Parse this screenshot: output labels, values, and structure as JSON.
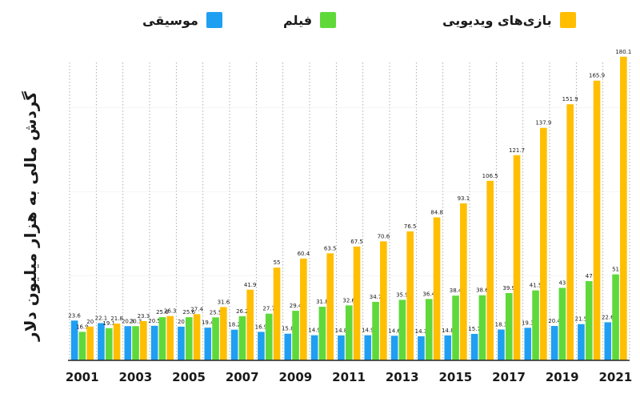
{
  "chart_data": {
    "type": "bar",
    "title": "",
    "ylabel": "گردش مالی به هزار میلیون دلار",
    "xlabel": "",
    "ylim": [
      0,
      190
    ],
    "grid": "vertical dotted lines between years",
    "legend_position": "top",
    "categories": [
      "2001",
      "2002",
      "2003",
      "2004",
      "2005",
      "2006",
      "2007",
      "2008",
      "2009",
      "2010",
      "2011",
      "2012",
      "2013",
      "2014",
      "2015",
      "2016",
      "2017",
      "2018",
      "2019",
      "2020",
      "2021"
    ],
    "x_tick_labels": [
      "2001",
      "2003",
      "2005",
      "2007",
      "2009",
      "2011",
      "2013",
      "2015",
      "2017",
      "2019",
      "2021"
    ],
    "series": [
      {
        "name": "موسیقی",
        "color": "#1e9ff2",
        "values": [
          23.6,
          22.1,
          20.3,
          20.5,
          20,
          19.4,
          18.2,
          16.9,
          15.8,
          14.9,
          14.8,
          14.9,
          14.6,
          14.3,
          14.8,
          15.7,
          18.3,
          19.3,
          20.4,
          21.5,
          22.6
        ],
        "labels": [
          "23.6",
          "22.1",
          "20.3",
          "20.5",
          "20",
          "19.4",
          "18.2",
          "16.9",
          "15.8",
          "14.9",
          "14.8",
          "14.9",
          "14.6",
          "14.3",
          "14.8",
          "15.7",
          "18.3",
          "19.3",
          "20.4",
          "21.5",
          "22.6"
        ]
      },
      {
        "name": "فیلم",
        "color": "#5fd93a",
        "values": [
          16.9,
          19.1,
          20.3,
          25.6,
          25.6,
          25.5,
          26.2,
          27.7,
          29.4,
          31.8,
          32.6,
          34.7,
          35.9,
          36.4,
          38.4,
          38.6,
          39.9,
          41.5,
          43,
          47,
          51
        ],
        "labels": [
          "16.9",
          "19.1",
          "20.3",
          "25.6",
          "25.6",
          "25.5",
          "26.2",
          "27.7",
          "29.4",
          "31.8",
          "32.6",
          "34.7",
          "35.9",
          "36.4",
          "38.4",
          "38.6",
          "39.9",
          "41.5",
          "43",
          "47",
          "51"
        ]
      },
      {
        "name": "بازی‌های ویدیویی",
        "color": "#ffbe00",
        "values": [
          20,
          21.8,
          23.3,
          26.3,
          27.4,
          31.6,
          41.9,
          55,
          60.4,
          63.5,
          67.5,
          70.6,
          76.5,
          84.8,
          93.1,
          106.5,
          121.7,
          137.9,
          151.9,
          165.9,
          180.1
        ],
        "labels": [
          "20",
          "21.8",
          "23.3",
          "26.3",
          "27.4",
          "31.6",
          "41.9",
          "55",
          "60.4",
          "63.5",
          "67.5",
          "70.6",
          "76.5",
          "84.8",
          "93.1",
          "106.5",
          "121.7",
          "137.9",
          "151.9",
          "165.9",
          "180.1"
        ]
      }
    ]
  },
  "colors": {
    "axis": "#222222",
    "grid": "#9a9a9a",
    "text": "#1a1a1a"
  },
  "icons": {
    "legend_swatch": "square-swatch"
  }
}
